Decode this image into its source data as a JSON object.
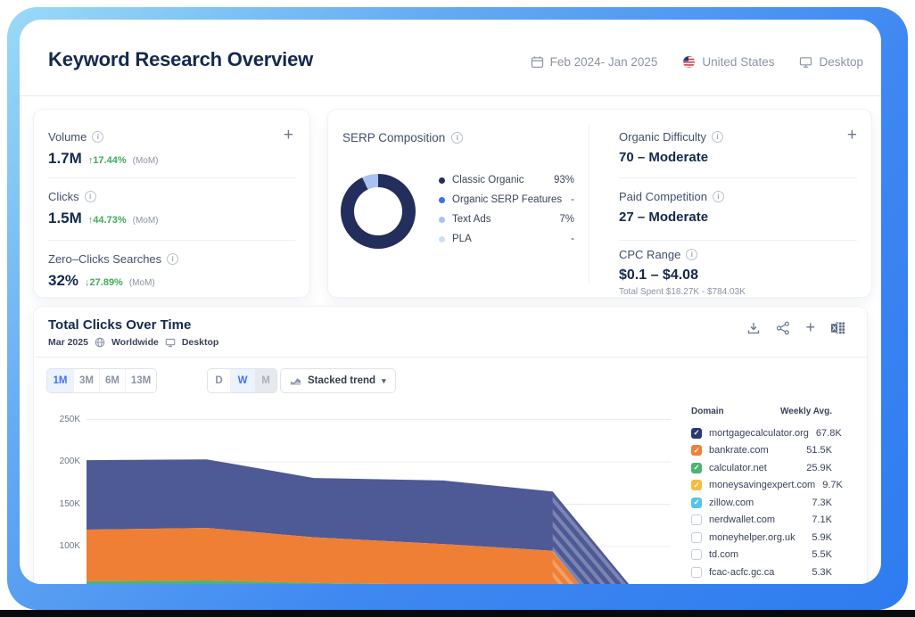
{
  "header": {
    "title": "Keyword Research Overview",
    "date_range": "Feb 2024- Jan 2025",
    "country": "United States",
    "device": "Desktop"
  },
  "stats": [
    {
      "label": "Volume",
      "value": "1.7M",
      "change": "↑17.44%",
      "change_suffix": "(MoM)"
    },
    {
      "label": "Clicks",
      "value": "1.5M",
      "change": "↑44.73%",
      "change_suffix": "(MoM)"
    },
    {
      "label": "Zero–Clicks Searches",
      "value": "32%",
      "change": "↓27.89%",
      "change_suffix": "(MoM)"
    }
  ],
  "serp": {
    "title": "SERP Composition",
    "donut_segments": [
      {
        "label": "Classic Organic",
        "pct": 93,
        "color": "#242e5c"
      },
      {
        "label": "Text Ads",
        "pct": 7,
        "color": "#a9c2f1"
      }
    ],
    "legend": [
      {
        "label": "Classic Organic",
        "value": "93%",
        "color": "#242e5c"
      },
      {
        "label": "Organic SERP Features",
        "value": "-",
        "color": "#3d6ef5"
      },
      {
        "label": "Text Ads",
        "value": "7%",
        "color": "#a9c2f1"
      },
      {
        "label": "PLA",
        "value": "-",
        "color": "#cfdef8"
      }
    ]
  },
  "difficulty_panel": {
    "organic": {
      "label": "Organic Difficulty",
      "value": "70 – Moderate"
    },
    "paid": {
      "label": "Paid Competition",
      "value": "27 – Moderate"
    },
    "cpc": {
      "label": "CPC Range",
      "value": "$0.1 – $4.08",
      "subtext": "Total Spent $18.27K - $784.03K"
    }
  },
  "chart_section": {
    "title": "Total Clicks Over Time",
    "date": "Mar 2025",
    "region": "Worldwide",
    "device": "Desktop",
    "time_ranges": [
      "1M",
      "3M",
      "6M",
      "13M"
    ],
    "active_range": "1M",
    "granularities": [
      {
        "label": "D",
        "state": "default"
      },
      {
        "label": "W",
        "state": "active"
      },
      {
        "label": "M",
        "state": "disabled"
      }
    ],
    "view_mode": "Stacked trend"
  },
  "chart_data": {
    "type": "area",
    "title": "Total Clicks Over Time",
    "units": "K clicks per week",
    "stacked": true,
    "ylim": [
      0,
      250
    ],
    "grid": true,
    "yticks": [
      {
        "label": "250K",
        "value": 250
      },
      {
        "label": "200K",
        "value": 200
      },
      {
        "label": "150K",
        "value": 150
      },
      {
        "label": "100K",
        "value": 100
      }
    ],
    "note": "points are [x fraction of plot width, cumulative stacked value in K]; x tick labels not visible in screenshot; hatched forecast zone after forecast_start_x",
    "series": [
      {
        "name": "mortgagecalculator.org",
        "color": "#4e5a96",
        "points": [
          [
            0,
            202
          ],
          [
            0.206,
            203
          ],
          [
            0.389,
            181
          ],
          [
            0.611,
            178
          ],
          [
            0.798,
            165
          ],
          [
            0.995,
            0
          ]
        ]
      },
      {
        "name": "bankrate.com",
        "color": "#ee7f35",
        "points": [
          [
            0,
            120
          ],
          [
            0.206,
            122
          ],
          [
            0.389,
            111
          ],
          [
            0.611,
            103
          ],
          [
            0.798,
            95
          ],
          [
            0.908,
            0
          ]
        ]
      },
      {
        "name": "calculator.net",
        "color": "#4db371",
        "points": [
          [
            0,
            59
          ],
          [
            0.206,
            60
          ],
          [
            0.389,
            57
          ],
          [
            0.611,
            55
          ],
          [
            0.798,
            53
          ],
          [
            0.855,
            0
          ]
        ]
      }
    ],
    "forecast_start_x": 0.798
  },
  "legend_table": {
    "col_domain": "Domain",
    "col_value": "Weekly Avg.",
    "rows": [
      {
        "domain": "mortgagecalculator.org",
        "value": "67.8K",
        "checked": true,
        "color": "#2b3674"
      },
      {
        "domain": "bankrate.com",
        "value": "51.5K",
        "checked": true,
        "color": "#f08038"
      },
      {
        "domain": "calculator.net",
        "value": "25.9K",
        "checked": true,
        "color": "#4db371"
      },
      {
        "domain": "moneysavingexpert.com",
        "value": "9.7K",
        "checked": true,
        "color": "#f6bc41"
      },
      {
        "domain": "zillow.com",
        "value": "7.3K",
        "checked": true,
        "color": "#58c4e6"
      },
      {
        "domain": "nerdwallet.com",
        "value": "7.1K",
        "checked": false,
        "color": ""
      },
      {
        "domain": "moneyhelper.org.uk",
        "value": "5.9K",
        "checked": false,
        "color": ""
      },
      {
        "domain": "td.com",
        "value": "5.5K",
        "checked": false,
        "color": ""
      },
      {
        "domain": "fcac-acfc.gc.ca",
        "value": "5.3K",
        "checked": false,
        "color": ""
      }
    ]
  },
  "icons": {
    "plus": "+",
    "caret": "▾",
    "check": "✓",
    "info": "i"
  }
}
